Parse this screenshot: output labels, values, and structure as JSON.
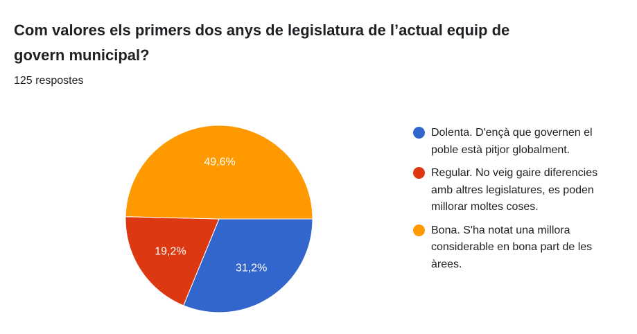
{
  "question": {
    "title": "Com valores els primers dos anys de legislatura de l’actual equip de govern municipal?",
    "responses": "125 respostes"
  },
  "chart_data": {
    "type": "pie",
    "title": "",
    "categories": [
      "Dolenta. D'ençà que governen el poble està pitjor globalment.",
      "Regular. No veig gaire diferencies amb altres legislatures, es poden millorar moltes coses.",
      "Bona. S'ha notat una millora considerable en bona part de les àrees."
    ],
    "values": [
      31.2,
      19.2,
      49.6
    ],
    "labels": [
      "31,2%",
      "19,2%",
      "49,6%"
    ],
    "colors": [
      "#3366cc",
      "#dc3912",
      "#ff9900"
    ],
    "legend_position": "right"
  }
}
